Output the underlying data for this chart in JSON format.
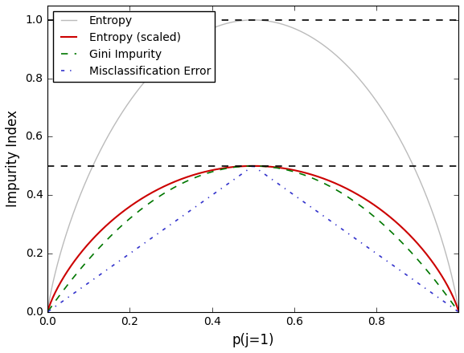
{
  "title": "",
  "xlabel": "p(j=1)",
  "ylabel": "Impurity Index",
  "xlim": [
    0.0,
    1.0
  ],
  "ylim": [
    0.0,
    1.05
  ],
  "hlines": [
    1.0,
    0.5
  ],
  "hline_color": "black",
  "hline_linestyle": "--",
  "hline_linewidth": 1.2,
  "entropy_color": "#bbbbbb",
  "entropy_scaled_color": "#cc0000",
  "gini_color": "#007700",
  "misclass_color": "#3333cc",
  "entropy_linewidth": 1.0,
  "entropy_scaled_linewidth": 1.5,
  "gini_linewidth": 1.2,
  "misclass_linewidth": 1.2,
  "legend_labels": [
    "Entropy",
    "Entropy (scaled)",
    "Gini Impurity",
    "Misclassification Error"
  ],
  "background_color": "#c8c8c8",
  "axes_background": "#ffffff",
  "tick_fontsize": 10,
  "label_fontsize": 12,
  "legend_fontsize": 10,
  "xticks": [
    0.0,
    0.2,
    0.4,
    0.6,
    0.8
  ],
  "yticks": [
    0.0,
    0.2,
    0.4,
    0.6,
    0.8,
    1.0
  ]
}
